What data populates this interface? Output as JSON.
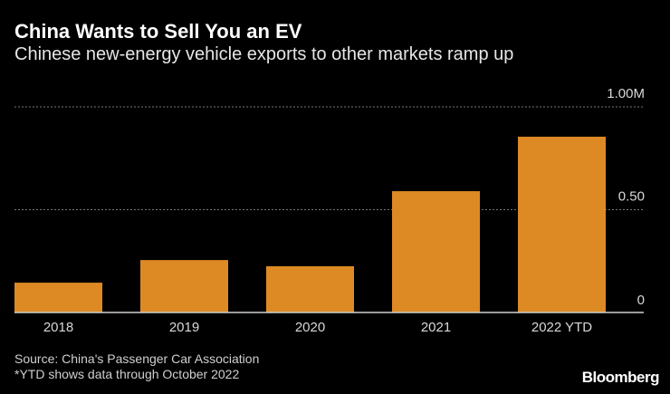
{
  "chart_data": {
    "type": "bar",
    "title": "China Wants to Sell You an EV",
    "subtitle": "Chinese new-energy vehicle exports to other markets ramp up",
    "categories": [
      "2018",
      "2019",
      "2020",
      "2021",
      "2022 YTD"
    ],
    "values": [
      0.145,
      0.255,
      0.225,
      0.59,
      0.855
    ],
    "unit": "M",
    "ylim": [
      0,
      1.0
    ],
    "yticks": [
      {
        "value": 0,
        "label": "0"
      },
      {
        "value": 0.5,
        "label": "0.50"
      },
      {
        "value": 1.0,
        "label": "1.00M"
      }
    ],
    "y_axis_side": "right",
    "grid": true,
    "bar_color": "#dd8a24"
  },
  "footer": {
    "source": "Source: China's Passenger Car Association",
    "note": "*YTD shows data through October 2022",
    "logo": "Bloomberg"
  }
}
